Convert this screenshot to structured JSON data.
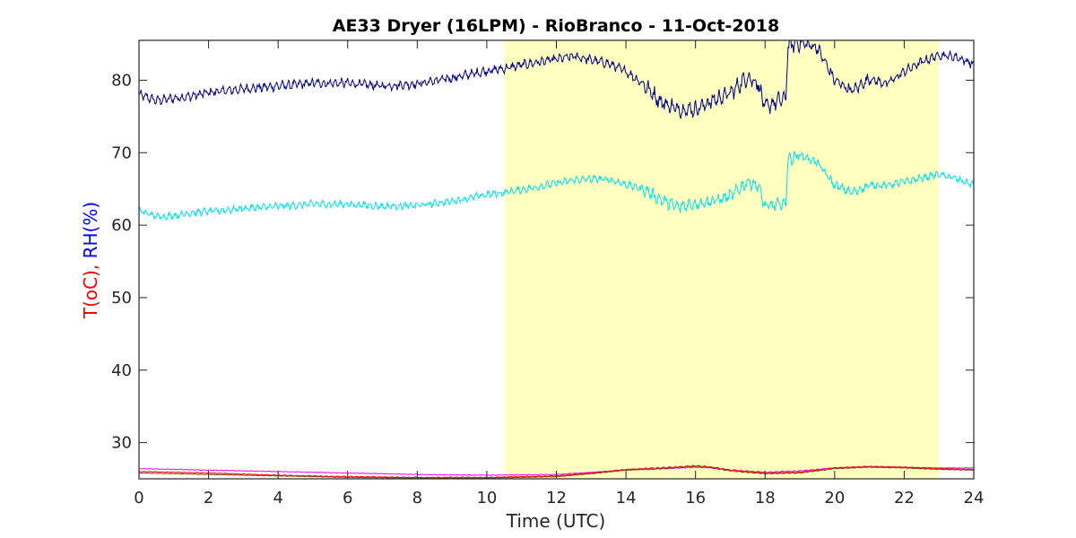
{
  "chart_data": {
    "type": "line",
    "title": "AE33 Dryer (16LPM)  - RioBranco - 11-Oct-2018",
    "xlabel": "Time (UTC)",
    "ylabel_parts": [
      {
        "text": "T(oC),",
        "color": "#ff0000"
      },
      {
        "text": " RH(%)",
        "color": "#0000ff"
      }
    ],
    "xlim": [
      0,
      24
    ],
    "ylim": [
      25,
      85.5
    ],
    "xticks": [
      0,
      2,
      4,
      6,
      8,
      10,
      12,
      14,
      16,
      18,
      20,
      22,
      24
    ],
    "yticks": [
      30,
      40,
      50,
      60,
      70,
      80
    ],
    "grid": false,
    "shaded_region": {
      "x_start": 10.5,
      "x_end": 23.0,
      "color": "#ffffbf"
    },
    "series": [
      {
        "color": "#00008b",
        "x": [
          0,
          0.5,
          1,
          1.5,
          2,
          3,
          4,
          5,
          6,
          7,
          8,
          9,
          10,
          10.5,
          11,
          11.5,
          12,
          12.5,
          13,
          13.5,
          14,
          14.5,
          15,
          15.5,
          16,
          16.5,
          17,
          17.5,
          17.8,
          18,
          18.3,
          18.6,
          18.65,
          19,
          19.5,
          20,
          20.5,
          21,
          21.5,
          22,
          22.5,
          23,
          23.5,
          24
        ],
        "y": [
          78,
          77.2,
          77.5,
          77.8,
          78.3,
          78.8,
          79.2,
          79.6,
          79.6,
          79.2,
          79.5,
          80.3,
          81.3,
          81.6,
          82.1,
          82.5,
          82.9,
          83.3,
          82.8,
          82.3,
          81.2,
          79.5,
          77,
          76,
          76,
          77.2,
          78.2,
          80.5,
          79.5,
          76.2,
          77,
          77.5,
          84.7,
          85.2,
          84.5,
          80,
          78.5,
          80.2,
          79.5,
          81.2,
          82.5,
          83.5,
          83.2,
          82.2
        ],
        "noise": 0.9
      },
      {
        "color": "#00e5ee",
        "x": [
          0,
          0.5,
          1,
          1.5,
          2,
          3,
          4,
          5,
          6,
          7,
          8,
          9,
          10,
          10.5,
          11,
          11.5,
          12,
          12.5,
          13,
          13.5,
          14,
          14.5,
          15,
          15.5,
          16,
          16.5,
          17,
          17.5,
          17.8,
          18,
          18.3,
          18.6,
          18.65,
          19,
          19.5,
          20,
          20.5,
          21,
          21.5,
          22,
          22.5,
          23,
          23.5,
          24
        ],
        "y": [
          62,
          61.2,
          61.3,
          61.7,
          61.9,
          62.3,
          62.6,
          62.9,
          62.9,
          62.6,
          62.7,
          63.3,
          64.2,
          64.5,
          64.9,
          65.3,
          65.8,
          66.2,
          66.4,
          66.3,
          65.6,
          65,
          63.5,
          62.5,
          63,
          63.3,
          64,
          66,
          65.5,
          62.5,
          62.8,
          63,
          69,
          69.7,
          68.6,
          65.5,
          64.5,
          65.5,
          65.5,
          66,
          66.5,
          67,
          66.4,
          65.5
        ],
        "noise": 0.7
      },
      {
        "color": "#ff00ff",
        "x": [
          0,
          2,
          4,
          6,
          8,
          10,
          12,
          14,
          15,
          16,
          16.5,
          17,
          18,
          19,
          20,
          21,
          22,
          23,
          24
        ],
        "y": [
          26.4,
          26.2,
          26.0,
          25.8,
          25.6,
          25.5,
          25.6,
          26.2,
          26.4,
          26.6,
          26.5,
          26.2,
          25.9,
          26.1,
          26.5,
          26.7,
          26.6,
          26.5,
          26.5
        ],
        "noise": 0.06
      },
      {
        "color": "#ff0000",
        "x": [
          0,
          2,
          4,
          6,
          8,
          10,
          12,
          13,
          14,
          15,
          16,
          16.5,
          17,
          18,
          19,
          20,
          21,
          22,
          23,
          24
        ],
        "y": [
          26.0,
          25.8,
          25.5,
          25.3,
          25.2,
          25.2,
          25.4,
          25.8,
          26.3,
          26.5,
          26.8,
          26.6,
          26.2,
          25.8,
          25.9,
          26.5,
          26.7,
          26.6,
          26.4,
          26.3
        ],
        "noise": 0.08
      },
      {
        "color": "#8b4513",
        "x": [
          0,
          2,
          4,
          6,
          8,
          10,
          12,
          13,
          14,
          15,
          16,
          16.5,
          17,
          18,
          19,
          20,
          21,
          22,
          23,
          24
        ],
        "y": [
          25.8,
          25.6,
          25.4,
          25.2,
          25.1,
          25.1,
          25.3,
          25.7,
          26.2,
          26.4,
          26.7,
          26.5,
          26.1,
          25.7,
          25.8,
          26.4,
          26.6,
          26.5,
          26.3,
          26.2
        ],
        "noise": 0.05
      }
    ]
  }
}
